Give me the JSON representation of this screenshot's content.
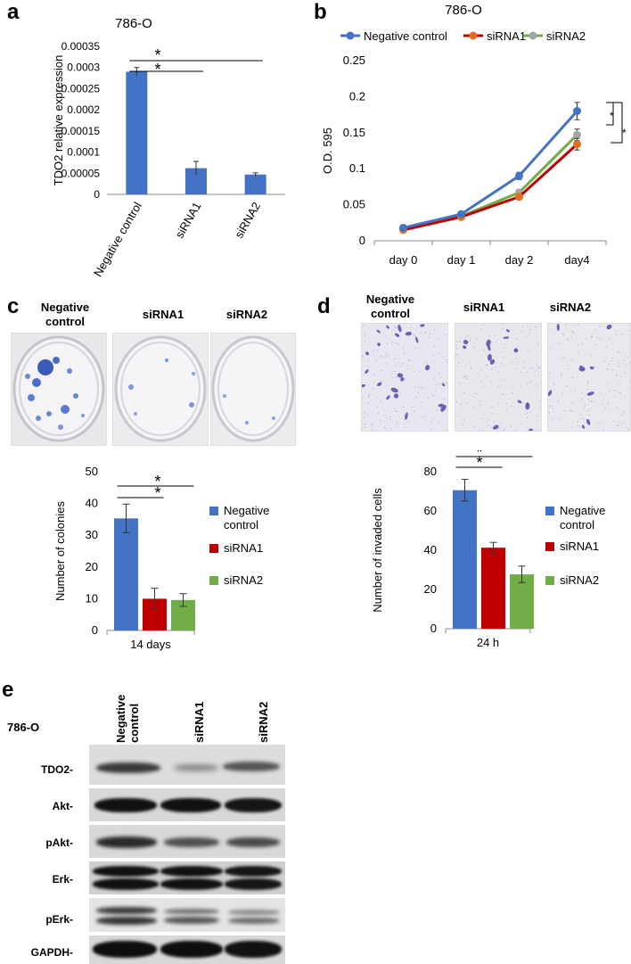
{
  "figure": {
    "panel_a": {
      "letter": "a",
      "title": "786-O",
      "ylabel": "TDO2 relative expression",
      "yticks": [
        "0",
        "0.00005",
        "0.0001",
        "0.00015",
        "0.0002",
        "0.00025",
        "0.0003",
        "0.00035"
      ],
      "star": "*"
    },
    "panel_b": {
      "letter": "b",
      "title": "786-O",
      "ylabel": "O.D. 595",
      "yticks": [
        "0",
        "0.05",
        "0.1",
        "0.15",
        "0.2",
        "0.25"
      ],
      "xticks": [
        "day 0",
        "day 1",
        "day 2",
        "day4"
      ],
      "legend": [
        "Negative control",
        "siRNA1",
        "siRNA2"
      ],
      "star": "*"
    },
    "panel_c": {
      "letter": "c",
      "photo_labels": [
        "Negative\ncontrol",
        "siRNA1",
        "siRNA2"
      ],
      "ylabel": "Number of colonies",
      "yticks": [
        "0",
        "10",
        "20",
        "30",
        "40",
        "50"
      ],
      "xlabel": "14 days",
      "legend": [
        "Negative\ncontrol",
        "siRNA1",
        "siRNA2"
      ],
      "star": "*"
    },
    "panel_d": {
      "letter": "d",
      "photo_labels": [
        "Negative\ncontrol",
        "siRNA1",
        "siRNA2"
      ],
      "ylabel": "Number of invaded cells",
      "yticks": [
        "0",
        "20",
        "40",
        "60",
        "80"
      ],
      "xlabel": "24 h",
      "legend": [
        "Negative\ncontrol",
        "siRNA1",
        "siRNA2"
      ],
      "star": "*"
    },
    "panel_e": {
      "letter": "e",
      "cell_line": "786-O",
      "lane_labels": [
        "Negative\ncontrol",
        "siRNA1",
        "siRNA2"
      ],
      "rows": [
        "TDO2-",
        "Akt-",
        "pAkt-",
        "Erk-",
        "pErk-",
        "GAPDH-"
      ]
    },
    "colors": {
      "negative_control": "#4472c4",
      "sirna1": "#c00000",
      "sirna2": "#70ad47",
      "sirna1_line": "#e07020",
      "sirna2_marker": "#a5a5a5"
    }
  },
  "chart_data": [
    {
      "type": "bar",
      "panel": "a",
      "title": "786-O",
      "ylabel": "TDO2 relative expression",
      "categories": [
        "Negative control",
        "siRNA1",
        "siRNA2"
      ],
      "values": [
        0.00029,
        6.2e-05,
        4.7e-05
      ],
      "errors": [
        1e-05,
        1.6e-05,
        4e-06
      ],
      "ylim": [
        0,
        0.00035
      ]
    },
    {
      "type": "line",
      "panel": "b",
      "title": "786-O",
      "ylabel": "O.D. 595",
      "x": [
        "day 0",
        "day 1",
        "day 2",
        "day4"
      ],
      "ylim": [
        0,
        0.25
      ],
      "series": [
        {
          "name": "Negative control",
          "values": [
            0.018,
            0.037,
            0.09,
            0.18
          ],
          "errors": [
            0.002,
            0.003,
            0.005,
            0.012
          ]
        },
        {
          "name": "siRNA1",
          "values": [
            0.015,
            0.033,
            0.061,
            0.134
          ],
          "errors": [
            0.002,
            0.002,
            0.004,
            0.008
          ]
        },
        {
          "name": "siRNA2",
          "values": [
            0.016,
            0.034,
            0.067,
            0.147
          ],
          "errors": [
            0.002,
            0.002,
            0.004,
            0.008
          ]
        }
      ]
    },
    {
      "type": "bar",
      "panel": "c",
      "ylabel": "Number of colonies",
      "categories": [
        "14 days"
      ],
      "series": [
        {
          "name": "Negative control",
          "values": [
            35.3
          ],
          "errors": [
            4.5
          ]
        },
        {
          "name": "siRNA1",
          "values": [
            10
          ],
          "errors": [
            3.3
          ]
        },
        {
          "name": "siRNA2",
          "values": [
            9.6
          ],
          "errors": [
            2
          ]
        }
      ],
      "ylim": [
        0,
        50
      ]
    },
    {
      "type": "bar",
      "panel": "d",
      "ylabel": "Number of invaded cells",
      "categories": [
        "24 h"
      ],
      "series": [
        {
          "name": "Negative control",
          "values": [
            70.6
          ],
          "errors": [
            5.5
          ]
        },
        {
          "name": "siRNA1",
          "values": [
            41.3
          ],
          "errors": [
            2.7
          ]
        },
        {
          "name": "siRNA2",
          "values": [
            27.7
          ],
          "errors": [
            4.2
          ]
        }
      ],
      "ylim": [
        0,
        80
      ]
    }
  ]
}
